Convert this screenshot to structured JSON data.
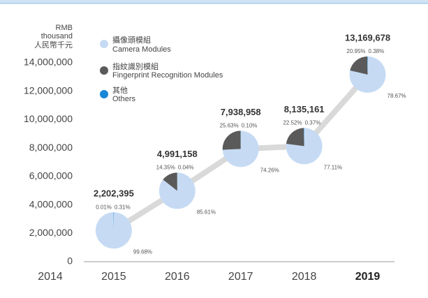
{
  "chart_data": {
    "type": "line",
    "y_label": [
      "RMB",
      "thousand",
      "人民幣千元"
    ],
    "x": [
      2015,
      2016,
      2017,
      2018,
      2019
    ],
    "values": [
      2202395,
      4991158,
      7938958,
      8135161,
      13169678
    ],
    "value_labels": [
      "2,202,395",
      "4,991,158",
      "7,938,958",
      "8,135,161",
      "13,169,678"
    ],
    "line_color": "#d9d9d9",
    "series": [
      {
        "name": "攝像頭模組",
        "name_en": "Camera Modules",
        "color": "#c6dbf3",
        "values": [
          99.68,
          85.61,
          74.26,
          77.11,
          78.67
        ],
        "value_labels": [
          "99.68%",
          "85.61%",
          "74.26%",
          "77.11%",
          "78.67%"
        ]
      },
      {
        "name": "指紋識別模組",
        "name_en": "Fingerprint Recognition Modules",
        "color": "#5a5a5a",
        "values": [
          0.01,
          14.35,
          25.63,
          22.52,
          20.95
        ],
        "value_labels": [
          "0.01%",
          "14.35%",
          "25.63%",
          "22.52%",
          "20.95%"
        ]
      },
      {
        "name": "其他",
        "name_en": "Others",
        "color": "#1a87d6",
        "values": [
          0.31,
          0.04,
          0.1,
          0.37,
          0.38
        ],
        "value_labels": [
          "0.31%",
          "0.04%",
          "0.10%",
          "0.37%",
          "0.38%"
        ]
      }
    ],
    "xlim": [
      2014,
      2019.5
    ],
    "xticks": [
      2014,
      2015,
      2016,
      2017,
      2018,
      2019
    ],
    "bold_xtick": 2019,
    "ylim": [
      0,
      14000000
    ],
    "yticks": [
      0,
      {
        "value": 2000000,
        "label": "2,000,000"
      },
      {
        "value": 4000000,
        "label": "4,000,000"
      },
      {
        "value": 6000000,
        "label": "6,000,000"
      },
      {
        "value": 8000000,
        "label": "8,000,000"
      },
      {
        "value": 10000000,
        "label": "10,000,000"
      },
      {
        "value": 12000000,
        "label": "12,000,000"
      },
      {
        "value": 14000000,
        "label": "14,000,000"
      }
    ]
  }
}
